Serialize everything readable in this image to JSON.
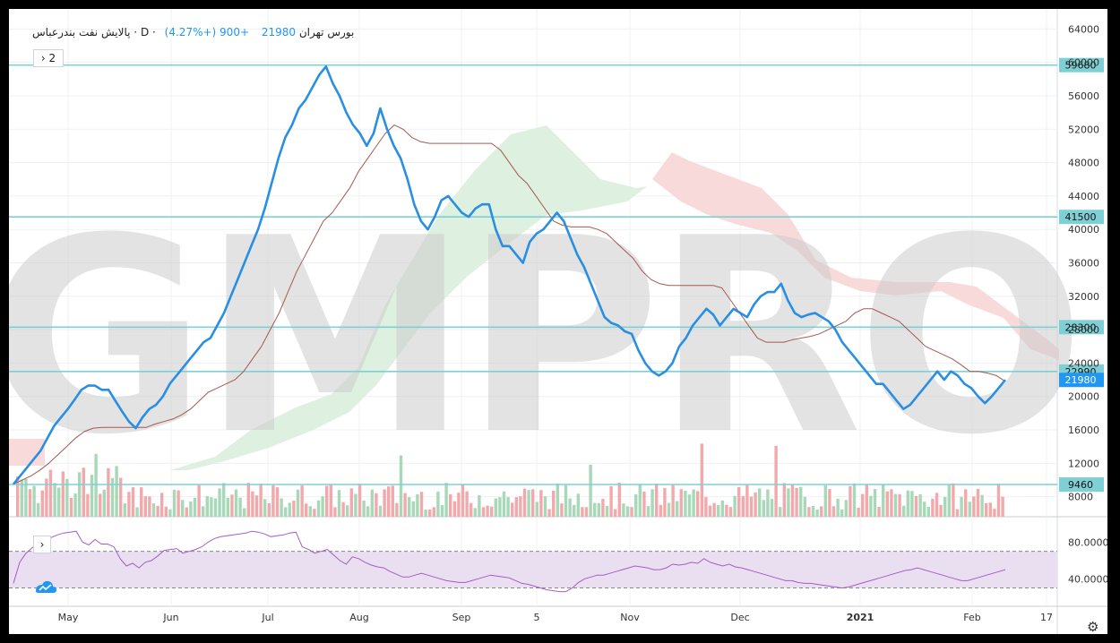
{
  "header": {
    "symbol": "پالایش نفت بندرعباس",
    "interval": "D",
    "exchange": "بورس تهران",
    "price": "21980",
    "change": "+900 (+4.27%)",
    "collapse_label": "2"
  },
  "watermark": "GMPRO",
  "colors": {
    "price_line": "#2a8fe3",
    "base_line": "#a35a52",
    "horizontal_levels": "#7fd0d4",
    "rsi_line": "#a45ec4",
    "rsi_band": "#e9dff1",
    "cloud_bull": "#daeedc",
    "cloud_bear": "#f8d6d6",
    "volume_up": "#a7d8b8",
    "volume_down": "#f2a9ac",
    "label_bg": "#7fd0d4",
    "last_price_bg": "#2196f3"
  },
  "axis": {
    "ticks": [
      "64000",
      "60000",
      "56000",
      "52000",
      "48000",
      "44000",
      "40000",
      "36000",
      "32000",
      "28000",
      "24000",
      "20000",
      "16000",
      "12000",
      "8000"
    ],
    "months": [
      "May",
      "Jun",
      "Jul",
      "Aug",
      "Sep",
      "5",
      "Nov",
      "Dec",
      "2021",
      "Feb",
      "17"
    ]
  },
  "rsi_axis": {
    "ticks": [
      "80.0000",
      "40.0000"
    ]
  },
  "chart_data": {
    "type": "line",
    "title": "پالایش نفت بندرعباس · D · بورس تهران",
    "ylim": [
      5600,
      66400
    ],
    "x_labels": [
      "May",
      "Jun",
      "Jul",
      "Aug",
      "Sep",
      "5",
      "Nov",
      "Dec",
      "2021",
      "Feb",
      "17"
    ],
    "levels": [
      {
        "value": 59680,
        "label": "59680"
      },
      {
        "value": 41500,
        "label": "41500"
      },
      {
        "value": 28300,
        "label": "28300"
      },
      {
        "value": 22990,
        "label": "22990"
      },
      {
        "value": 9460,
        "label": "9460"
      }
    ],
    "last_price": 21980,
    "series": [
      {
        "values": [
          9500,
          10500,
          11500,
          12500,
          13500,
          15000,
          16500,
          17500,
          18500,
          19600,
          20800,
          21300,
          21300,
          20800,
          20800,
          19500,
          18200,
          17000,
          16200,
          17500,
          18500,
          19000,
          20000,
          21500,
          22500,
          23500,
          24500,
          25500,
          26500,
          27000,
          28500,
          30000,
          32000,
          34000,
          36000,
          38000,
          40000,
          42500,
          45500,
          48500,
          51000,
          52500,
          54500,
          55500,
          57000,
          58500,
          59500,
          57500,
          56000,
          54000,
          52500,
          51500,
          50000,
          51500,
          54500,
          52000,
          50000,
          48500,
          46000,
          43000,
          41000,
          40000,
          41500,
          43500,
          44000,
          43000,
          42000,
          41500,
          42500,
          43000,
          43000,
          40000,
          38000,
          38000,
          37000,
          36000,
          38500,
          39500,
          40000,
          41000,
          42000,
          41000,
          39000,
          37000,
          35500,
          33500,
          31500,
          29500,
          28800,
          28500,
          27800,
          27500,
          25500,
          24000,
          23000,
          22500,
          23000,
          24000,
          26000,
          27000,
          28500,
          29500,
          30500,
          29800,
          28500,
          29500,
          30500,
          30000,
          29500,
          31000,
          32000,
          32500,
          32500,
          33500,
          31500,
          30000,
          29500,
          29800,
          30000,
          29500,
          29000,
          28000,
          26500,
          25500,
          24500,
          23500,
          22500,
          21500,
          21500,
          20500,
          19500,
          18500,
          19000,
          20000,
          21000,
          22000,
          23000,
          22000,
          23000,
          22500,
          21500,
          21000,
          20000,
          19200,
          20000,
          21000,
          21980
        ]
      },
      {
        "values": [
          9500,
          10000,
          10500,
          11200,
          12000,
          13000,
          14000,
          15000,
          15800,
          16200,
          16300,
          16300,
          16300,
          16300,
          16300,
          16300,
          16700,
          17000,
          17300,
          17800,
          18500,
          19500,
          20500,
          21000,
          21500,
          22000,
          23000,
          24500,
          26000,
          28000,
          30000,
          32500,
          35000,
          37000,
          39000,
          41000,
          42000,
          43500,
          45000,
          47000,
          48500,
          50000,
          51500,
          52500,
          52000,
          51000,
          50500,
          50300,
          50300,
          50300,
          50300,
          50300,
          50300,
          50300,
          50300,
          49500,
          48000,
          46500,
          45500,
          44000,
          42500,
          41000,
          40500,
          40300,
          40300,
          40300,
          40000,
          39500,
          38500,
          37500,
          36500,
          35000,
          34000,
          33500,
          33300,
          33300,
          33300,
          33300,
          33300,
          33300,
          33000,
          31500,
          30000,
          28500,
          27000,
          26500,
          26500,
          26500,
          26800,
          27000,
          27200,
          27500,
          28000,
          28500,
          29000,
          30000,
          30500,
          30500,
          30000,
          29500,
          29000,
          28000,
          27000,
          26000,
          25500,
          25000,
          24500,
          23800,
          23000,
          23000,
          22800,
          22500,
          21800
        ]
      }
    ],
    "rsi": {
      "levels": [
        70,
        30
      ],
      "ticks": [
        80,
        40
      ],
      "values": [
        35,
        58,
        68,
        74,
        78,
        82,
        85,
        88,
        90,
        91,
        92,
        80,
        77,
        83,
        78,
        78,
        75,
        62,
        54,
        57,
        52,
        58,
        60,
        65,
        71,
        72,
        73,
        68,
        70,
        72,
        75,
        80,
        84,
        86,
        87,
        88,
        89,
        90,
        92,
        91,
        89,
        86,
        87,
        88,
        90,
        91,
        75,
        72,
        68,
        70,
        72,
        66,
        60,
        56,
        64,
        62,
        58,
        55,
        53,
        52,
        48,
        45,
        42,
        42,
        44,
        46,
        44,
        42,
        40,
        38,
        37,
        36,
        36,
        38,
        40,
        42,
        44,
        43,
        42,
        41,
        38,
        35,
        34,
        32,
        30,
        28,
        27,
        26,
        26,
        30,
        36,
        40,
        42,
        44,
        44,
        46,
        48,
        50,
        52,
        54,
        53,
        52,
        50,
        50,
        52,
        56,
        55,
        56,
        58,
        57,
        62,
        58,
        56,
        54,
        56,
        53,
        52,
        50,
        48,
        46,
        44,
        42,
        40,
        38,
        38,
        36,
        35,
        35,
        34,
        33,
        32,
        31,
        30,
        31,
        33,
        35,
        37,
        39,
        41,
        43,
        45,
        47,
        49,
        50,
        52,
        50,
        48,
        46,
        44,
        42,
        40,
        38,
        38,
        40,
        42,
        44,
        46,
        48,
        50
      ]
    }
  }
}
